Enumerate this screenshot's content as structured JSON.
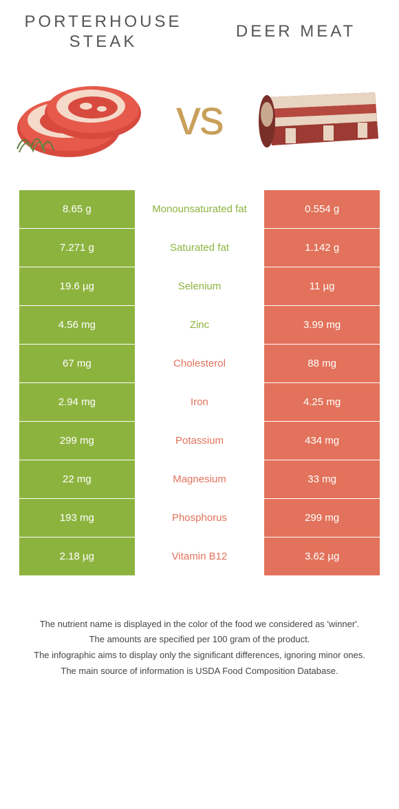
{
  "left_title": "Porterhouse steak",
  "right_title": "Deer meat",
  "vs": "vs",
  "colors": {
    "green": "#8db33f",
    "red": "#e2725b",
    "vs_color": "#c9a05a"
  },
  "rows": [
    {
      "left": "8.65 g",
      "label": "Monounsaturated fat",
      "right": "0.554 g",
      "winner": "left"
    },
    {
      "left": "7.271 g",
      "label": "Saturated fat",
      "right": "1.142 g",
      "winner": "left"
    },
    {
      "left": "19.6 µg",
      "label": "Selenium",
      "right": "11 µg",
      "winner": "left"
    },
    {
      "left": "4.56 mg",
      "label": "Zinc",
      "right": "3.99 mg",
      "winner": "left"
    },
    {
      "left": "67 mg",
      "label": "Cholesterol",
      "right": "88 mg",
      "winner": "right"
    },
    {
      "left": "2.94 mg",
      "label": "Iron",
      "right": "4.25 mg",
      "winner": "right"
    },
    {
      "left": "299 mg",
      "label": "Potassium",
      "right": "434 mg",
      "winner": "right"
    },
    {
      "left": "22 mg",
      "label": "Magnesium",
      "right": "33 mg",
      "winner": "right"
    },
    {
      "left": "193 mg",
      "label": "Phosphorus",
      "right": "299 mg",
      "winner": "right"
    },
    {
      "left": "2.18 µg",
      "label": "Vitamin B12",
      "right": "3.62 µg",
      "winner": "right"
    }
  ],
  "footnotes": [
    "The nutrient name is displayed in the color of the food we considered as 'winner'.",
    "The amounts are specified per 100 gram of the product.",
    "The infographic aims to display only the significant differences, ignoring minor ones.",
    "The main source of information is USDA Food Composition Database."
  ]
}
